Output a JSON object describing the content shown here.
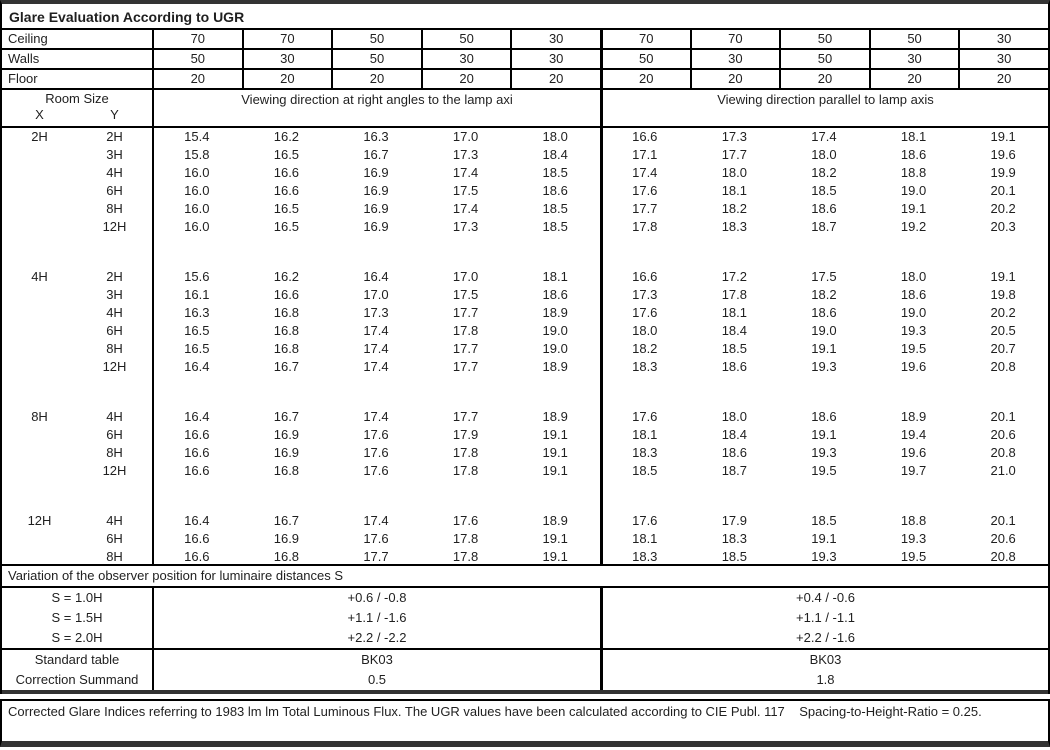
{
  "title": "Glare Evaluation According to UGR",
  "reflectances": {
    "rows": [
      {
        "label": "Ceiling",
        "values": [
          "70",
          "70",
          "50",
          "50",
          "30",
          "70",
          "70",
          "50",
          "50",
          "30"
        ]
      },
      {
        "label": "Walls",
        "values": [
          "50",
          "30",
          "50",
          "30",
          "30",
          "50",
          "30",
          "50",
          "30",
          "30"
        ]
      },
      {
        "label": "Floor",
        "values": [
          "20",
          "20",
          "20",
          "20",
          "20",
          "20",
          "20",
          "20",
          "20",
          "20"
        ]
      }
    ]
  },
  "header": {
    "room_size_label": "Room Size",
    "x_label": "X",
    "y_label": "Y",
    "left_viewing_label": "Viewing direction at right angles to the lamp axi",
    "right_viewing_label": "Viewing direction parallel to lamp axis"
  },
  "blocks": [
    {
      "x": "2H",
      "rows": [
        {
          "y": "2H",
          "values": [
            "15.4",
            "16.2",
            "16.3",
            "17.0",
            "18.0",
            "16.6",
            "17.3",
            "17.4",
            "18.1",
            "19.1"
          ]
        },
        {
          "y": "3H",
          "values": [
            "15.8",
            "16.5",
            "16.7",
            "17.3",
            "18.4",
            "17.1",
            "17.7",
            "18.0",
            "18.6",
            "19.6"
          ]
        },
        {
          "y": "4H",
          "values": [
            "16.0",
            "16.6",
            "16.9",
            "17.4",
            "18.5",
            "17.4",
            "18.0",
            "18.2",
            "18.8",
            "19.9"
          ]
        },
        {
          "y": "6H",
          "values": [
            "16.0",
            "16.6",
            "16.9",
            "17.5",
            "18.6",
            "17.6",
            "18.1",
            "18.5",
            "19.0",
            "20.1"
          ]
        },
        {
          "y": "8H",
          "values": [
            "16.0",
            "16.5",
            "16.9",
            "17.4",
            "18.5",
            "17.7",
            "18.2",
            "18.6",
            "19.1",
            "20.2"
          ]
        },
        {
          "y": "12H",
          "values": [
            "16.0",
            "16.5",
            "16.9",
            "17.3",
            "18.5",
            "17.8",
            "18.3",
            "18.7",
            "19.2",
            "20.3"
          ]
        }
      ]
    },
    {
      "x": "4H",
      "rows": [
        {
          "y": "2H",
          "values": [
            "15.6",
            "16.2",
            "16.4",
            "17.0",
            "18.1",
            "16.6",
            "17.2",
            "17.5",
            "18.0",
            "19.1"
          ]
        },
        {
          "y": "3H",
          "values": [
            "16.1",
            "16.6",
            "17.0",
            "17.5",
            "18.6",
            "17.3",
            "17.8",
            "18.2",
            "18.6",
            "19.8"
          ]
        },
        {
          "y": "4H",
          "values": [
            "16.3",
            "16.8",
            "17.3",
            "17.7",
            "18.9",
            "17.6",
            "18.1",
            "18.6",
            "19.0",
            "20.2"
          ]
        },
        {
          "y": "6H",
          "values": [
            "16.5",
            "16.8",
            "17.4",
            "17.8",
            "19.0",
            "18.0",
            "18.4",
            "19.0",
            "19.3",
            "20.5"
          ]
        },
        {
          "y": "8H",
          "values": [
            "16.5",
            "16.8",
            "17.4",
            "17.7",
            "19.0",
            "18.2",
            "18.5",
            "19.1",
            "19.5",
            "20.7"
          ]
        },
        {
          "y": "12H",
          "values": [
            "16.4",
            "16.7",
            "17.4",
            "17.7",
            "18.9",
            "18.3",
            "18.6",
            "19.3",
            "19.6",
            "20.8"
          ]
        }
      ]
    },
    {
      "x": "8H",
      "rows": [
        {
          "y": "4H",
          "values": [
            "16.4",
            "16.7",
            "17.4",
            "17.7",
            "18.9",
            "17.6",
            "18.0",
            "18.6",
            "18.9",
            "20.1"
          ]
        },
        {
          "y": "6H",
          "values": [
            "16.6",
            "16.9",
            "17.6",
            "17.9",
            "19.1",
            "18.1",
            "18.4",
            "19.1",
            "19.4",
            "20.6"
          ]
        },
        {
          "y": "8H",
          "values": [
            "16.6",
            "16.9",
            "17.6",
            "17.8",
            "19.1",
            "18.3",
            "18.6",
            "19.3",
            "19.6",
            "20.8"
          ]
        },
        {
          "y": "12H",
          "values": [
            "16.6",
            "16.8",
            "17.6",
            "17.8",
            "19.1",
            "18.5",
            "18.7",
            "19.5",
            "19.7",
            "21.0"
          ]
        }
      ]
    },
    {
      "x": "12H",
      "rows": [
        {
          "y": "4H",
          "values": [
            "16.4",
            "16.7",
            "17.4",
            "17.6",
            "18.9",
            "17.6",
            "17.9",
            "18.5",
            "18.8",
            "20.1"
          ]
        },
        {
          "y": "6H",
          "values": [
            "16.6",
            "16.9",
            "17.6",
            "17.8",
            "19.1",
            "18.1",
            "18.3",
            "19.1",
            "19.3",
            "20.6"
          ]
        },
        {
          "y": "8H",
          "values": [
            "16.6",
            "16.8",
            "17.7",
            "17.8",
            "19.1",
            "18.3",
            "18.5",
            "19.3",
            "19.5",
            "20.8"
          ]
        }
      ]
    }
  ],
  "variation": {
    "label": "Variation of the observer position for luminaire distances S",
    "rows": [
      {
        "label": "S = 1.0H",
        "left": "+0.6 / -0.8",
        "right": "+0.4 / -0.6"
      },
      {
        "label": "S = 1.5H",
        "left": "+1.1 / -1.6",
        "right": "+1.1 / -1.1"
      },
      {
        "label": "S = 2.0H",
        "left": "+2.2 / -2.2",
        "right": "+2.2 / -1.6"
      }
    ]
  },
  "summary": {
    "rows": [
      {
        "label": "Standard table",
        "left": "BK03",
        "right": "BK03"
      },
      {
        "label": "Correction Summand",
        "left": "0.5",
        "right": "1.8"
      }
    ]
  },
  "footer": "Corrected Glare Indices referring to 1983 lm lm Total Luminous Flux. The UGR values have been calculated according to CIE Publ. 117    Spacing-to-Height-Ratio = 0.25."
}
